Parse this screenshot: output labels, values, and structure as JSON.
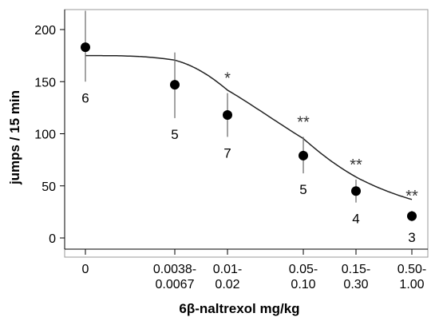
{
  "chart_data": {
    "type": "scatter",
    "title": "",
    "xlabel": "6β-naltrexol mg/kg",
    "ylabel": "jumps / 15 min",
    "ylim": [
      -5,
      220
    ],
    "yticks": [
      0,
      50,
      100,
      150,
      200
    ],
    "categories": [
      [
        "0"
      ],
      [
        "0.0038-",
        "0.0067"
      ],
      [
        "0.01-",
        "0.02"
      ],
      [
        "0.05-",
        "0.10"
      ],
      [
        "0.15-",
        "0.30"
      ],
      [
        "0.50-",
        "1.00"
      ]
    ],
    "points": [
      {
        "x": "0",
        "y": 183,
        "err_low": 150,
        "err_high": 218,
        "n": "6",
        "sig": ""
      },
      {
        "x": "0.0038-0.0067",
        "y": 147,
        "err_low": 115,
        "err_high": 178,
        "n": "5",
        "sig": ""
      },
      {
        "x": "0.01-0.02",
        "y": 118,
        "err_low": 97,
        "err_high": 139,
        "n": "7",
        "sig": "*"
      },
      {
        "x": "0.05-0.10",
        "y": 79,
        "err_low": 62,
        "err_high": 97,
        "n": "5",
        "sig": "**"
      },
      {
        "x": "0.15-0.30",
        "y": 45,
        "err_low": 34,
        "err_high": 56,
        "n": "4",
        "sig": "**"
      },
      {
        "x": "0.50-1.00",
        "y": 21,
        "err_low": 16,
        "err_high": 26,
        "n": "3",
        "sig": "**"
      }
    ],
    "fit_curve": {
      "top": 175,
      "bottom": 7,
      "midpoint_index": 3.1,
      "slope": 1.6
    },
    "grid": false,
    "legend": "none"
  }
}
